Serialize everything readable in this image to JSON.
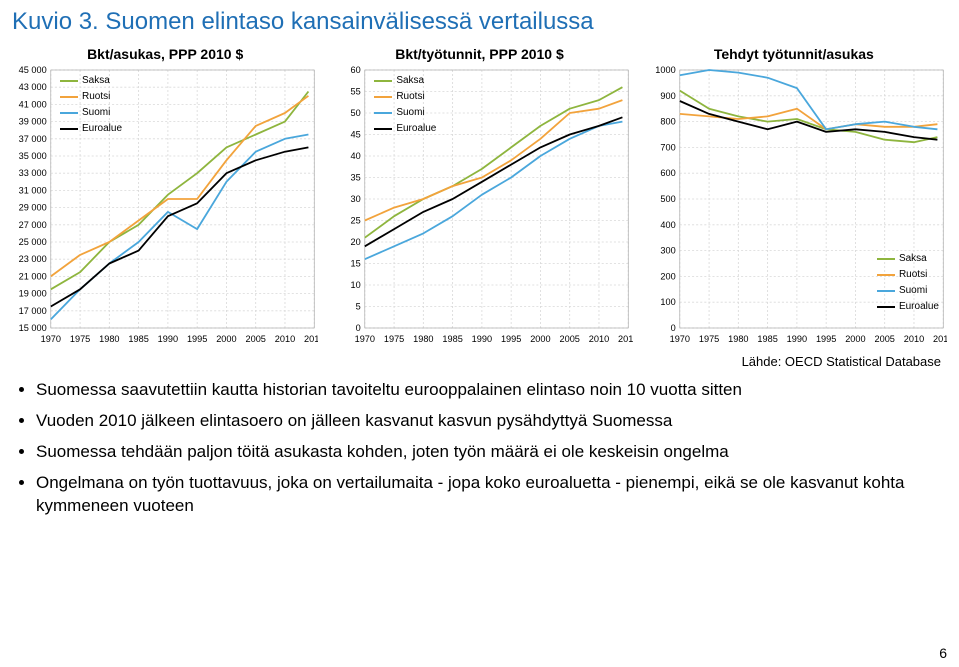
{
  "title": "Kuvio 3. Suomen elintaso kansainvälisessä vertailussa",
  "source": "Lähde: OECD Statistical Database",
  "page_number": "6",
  "series_labels": {
    "saksa": "Saksa",
    "ruotsi": "Ruotsi",
    "suomi": "Suomi",
    "euroalue": "Euroalue"
  },
  "colors": {
    "saksa": "#8eb53e",
    "ruotsi": "#f2a33c",
    "suomi": "#4aa7dc",
    "euroalue": "#000000",
    "grid": "#d9d9d9",
    "axis": "#a0a0a0",
    "title": "#1f6fb5",
    "bg": "#ffffff"
  },
  "charts": [
    {
      "title": "Bkt/asukas, PPP 2010 $",
      "legend_pos": "top-left",
      "xmin": 1970,
      "xmax": 2015,
      "xtick_step": 5,
      "ymin": 15000,
      "ymax": 45000,
      "ytick_step": 2000,
      "ylabel_fmt": "space3",
      "line_width": 1.8,
      "series": {
        "saksa": {
          "x": [
            1970,
            1975,
            1980,
            1985,
            1990,
            1995,
            2000,
            2005,
            2010,
            2014
          ],
          "y": [
            19500,
            21500,
            25000,
            27000,
            30500,
            33000,
            36000,
            37500,
            39000,
            42500
          ]
        },
        "ruotsi": {
          "x": [
            1970,
            1975,
            1980,
            1985,
            1990,
            1995,
            2000,
            2005,
            2010,
            2014
          ],
          "y": [
            21000,
            23500,
            25000,
            27500,
            30000,
            30000,
            34500,
            38500,
            40000,
            42000
          ]
        },
        "suomi": {
          "x": [
            1970,
            1975,
            1980,
            1985,
            1990,
            1995,
            2000,
            2005,
            2010,
            2014
          ],
          "y": [
            16000,
            19500,
            22500,
            25000,
            28500,
            26500,
            32000,
            35500,
            37000,
            37500
          ]
        },
        "euroalue": {
          "x": [
            1970,
            1975,
            1980,
            1985,
            1990,
            1995,
            2000,
            2005,
            2010,
            2014
          ],
          "y": [
            17500,
            19500,
            22500,
            24000,
            28000,
            29500,
            33000,
            34500,
            35500,
            36000
          ]
        }
      }
    },
    {
      "title": "Bkt/työtunnit, PPP 2010 $",
      "legend_pos": "top-left",
      "xmin": 1970,
      "xmax": 2015,
      "xtick_step": 5,
      "ymin": 0,
      "ymax": 60,
      "ytick_step": 5,
      "ylabel_fmt": "plain",
      "line_width": 1.8,
      "series": {
        "saksa": {
          "x": [
            1970,
            1975,
            1980,
            1985,
            1990,
            1995,
            2000,
            2005,
            2010,
            2014
          ],
          "y": [
            21,
            26,
            30,
            33,
            37,
            42,
            47,
            51,
            53,
            56
          ]
        },
        "ruotsi": {
          "x": [
            1970,
            1975,
            1980,
            1985,
            1990,
            1995,
            2000,
            2005,
            2010,
            2014
          ],
          "y": [
            25,
            28,
            30,
            33,
            35,
            39,
            44,
            50,
            51,
            53
          ]
        },
        "suomi": {
          "x": [
            1970,
            1975,
            1980,
            1985,
            1990,
            1995,
            2000,
            2005,
            2010,
            2014
          ],
          "y": [
            16,
            19,
            22,
            26,
            31,
            35,
            40,
            44,
            47,
            48
          ]
        },
        "euroalue": {
          "x": [
            1970,
            1975,
            1980,
            1985,
            1990,
            1995,
            2000,
            2005,
            2010,
            2014
          ],
          "y": [
            19,
            23,
            27,
            30,
            34,
            38,
            42,
            45,
            47,
            49
          ]
        }
      }
    },
    {
      "title": "Tehdyt työtunnit/asukas",
      "legend_pos": "bottom-right",
      "xmin": 1970,
      "xmax": 2015,
      "xtick_step": 5,
      "ymin": 0,
      "ymax": 1000,
      "ytick_step": 100,
      "ylabel_fmt": "plain",
      "line_width": 1.8,
      "series": {
        "saksa": {
          "x": [
            1970,
            1975,
            1980,
            1985,
            1990,
            1995,
            2000,
            2005,
            2010,
            2014
          ],
          "y": [
            920,
            850,
            820,
            800,
            810,
            770,
            760,
            730,
            720,
            740
          ]
        },
        "ruotsi": {
          "x": [
            1970,
            1975,
            1980,
            1985,
            1990,
            1995,
            2000,
            2005,
            2010,
            2014
          ],
          "y": [
            830,
            820,
            810,
            820,
            850,
            770,
            790,
            780,
            780,
            790
          ]
        },
        "suomi": {
          "x": [
            1970,
            1975,
            1980,
            1985,
            1990,
            1995,
            2000,
            2005,
            2010,
            2014
          ],
          "y": [
            980,
            1000,
            990,
            970,
            930,
            770,
            790,
            800,
            780,
            770
          ]
        },
        "euroalue": {
          "x": [
            1970,
            1975,
            1980,
            1985,
            1990,
            1995,
            2000,
            2005,
            2010,
            2014
          ],
          "y": [
            880,
            830,
            800,
            770,
            800,
            760,
            770,
            760,
            740,
            730
          ]
        }
      }
    }
  ],
  "bullets": [
    "Suomessa saavutettiin kautta historian tavoiteltu eurooppalainen elintaso noin 10 vuotta sitten",
    "Vuoden 2010 jälkeen elintasoero on jälleen kasvanut kasvun pysähdyttyä Suomessa",
    "Suomessa tehdään paljon töitä asukasta kohden, joten työn määrä ei ole keskeisin ongelma",
    "Ongelmana on työn tuottavuus, joka on vertailumaita - jopa koko euroaluetta - pienempi, eikä se ole kasvanut kohta kymmeneen vuoteen"
  ]
}
